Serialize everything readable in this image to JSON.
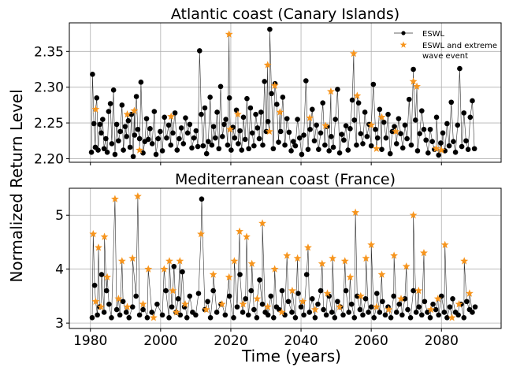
{
  "figure": {
    "xlabel": "Time (years)",
    "ylabel": "Normalized Return Level"
  },
  "colors": {
    "eswl": "#000000",
    "extreme": "#f7951d",
    "grid": "#b0b0b0",
    "line": "#333333"
  },
  "chart_data": [
    {
      "type": "scatter",
      "title": "Atlantic coast (Canary Islands)",
      "xlabel": "",
      "ylabel": "",
      "xlim": [
        1974,
        2097
      ],
      "ylim": [
        2.195,
        2.39
      ],
      "xticks": [
        1980,
        2000,
        2020,
        2040,
        2060,
        2080
      ],
      "yticks": [
        2.2,
        2.25,
        2.3,
        2.35
      ],
      "ytick_labels": [
        "2.20",
        "2.25",
        "2.30",
        "2.35"
      ],
      "grid": true,
      "legend": {
        "placement": "top-right",
        "entries": [
          {
            "label": "ESWL",
            "marker": "circle-line"
          },
          {
            "label_lines": [
              "ESWL and extreme",
              "wave event"
            ],
            "marker": "star"
          }
        ]
      },
      "series": [
        {
          "name": "ESWL",
          "marker": "circle",
          "x": [
            1980.3,
            1980.6,
            1981.0,
            1981.4,
            1981.8,
            1982.2,
            1982.7,
            1983.1,
            1983.5,
            1983.9,
            1984.4,
            1984.8,
            1985.2,
            1985.7,
            1986.1,
            1986.6,
            1987.0,
            1987.5,
            1988.0,
            1988.5,
            1989.0,
            1989.4,
            1989.9,
            1990.3,
            1990.8,
            1991.3,
            1991.7,
            1992.2,
            1992.6,
            1993.1,
            1993.5,
            1994.0,
            1994.4,
            1995.0,
            1995.5,
            1996.0,
            1996.5,
            1997.0,
            1997.6,
            1998.2,
            1998.7,
            1999.3,
            1999.9,
            2000.5,
            2001.1,
            2001.7,
            2002.3,
            2002.9,
            2003.5,
            2004.1,
            2004.7,
            2005.3,
            2005.9,
            2006.5,
            2007.1,
            2007.7,
            2008.3,
            2008.9,
            2009.5,
            2010.1,
            2010.6,
            2011.1,
            2011.6,
            2012.1,
            2012.6,
            2013.1,
            2013.6,
            2014.1,
            2014.6,
            2015.1,
            2015.6,
            2016.1,
            2016.6,
            2017.1,
            2017.6,
            2018.1,
            2018.6,
            2019.1,
            2019.6,
            2020.1,
            2020.6,
            2021.1,
            2021.6,
            2022.1,
            2022.6,
            2023.1,
            2023.6,
            2024.1,
            2024.6,
            2025.1,
            2025.6,
            2026.1,
            2026.6,
            2027.1,
            2027.6,
            2028.1,
            2028.6,
            2029.1,
            2029.6,
            2030.1,
            2030.6,
            2031.1,
            2031.6,
            2032.1,
            2032.6,
            2033.1,
            2033.6,
            2034.2,
            2034.8,
            2035.4,
            2036.0,
            2036.6,
            2037.2,
            2037.8,
            2038.4,
            2039.0,
            2039.6,
            2040.2,
            2040.8,
            2041.4,
            2042.0,
            2042.6,
            2043.2,
            2043.8,
            2044.4,
            2045.0,
            2045.6,
            2046.2,
            2046.8,
            2047.4,
            2048.0,
            2048.6,
            2049.2,
            2049.8,
            2050.4,
            2051.0,
            2051.6,
            2052.2,
            2052.8,
            2053.4,
            2054.0,
            2054.6,
            2055.2,
            2055.8,
            2056.4,
            2057.0,
            2057.6,
            2058.2,
            2058.8,
            2059.4,
            2060.0,
            2060.6,
            2061.2,
            2061.8,
            2062.4,
            2063.0,
            2063.6,
            2064.2,
            2064.8,
            2065.4,
            2066.0,
            2066.6,
            2067.2,
            2067.8,
            2068.4,
            2069.0,
            2069.6,
            2070.2,
            2070.8,
            2071.4,
            2072.0,
            2072.6,
            2073.2,
            2073.8,
            2074.4,
            2075.0,
            2075.6,
            2076.2,
            2076.8,
            2077.4,
            2078.0,
            2078.6,
            2079.2,
            2079.8,
            2080.4,
            2081.0,
            2081.6,
            2082.2,
            2082.8,
            2083.4,
            2084.0,
            2084.6,
            2085.2,
            2085.8,
            2086.4,
            2087.0,
            2087.6,
            2088.2,
            2088.8,
            2089.4
          ],
          "y": [
            2.209,
            2.318,
            2.249,
            2.216,
            2.285,
            2.212,
            2.248,
            2.236,
            2.255,
            2.214,
            2.228,
            2.209,
            2.266,
            2.277,
            2.221,
            2.296,
            2.206,
            2.248,
            2.225,
            2.238,
            2.275,
            2.212,
            2.245,
            2.231,
            2.253,
            2.216,
            2.262,
            2.203,
            2.233,
            2.287,
            2.241,
            2.228,
            2.307,
            2.208,
            2.224,
            2.256,
            2.227,
            2.242,
            2.221,
            2.266,
            2.206,
            2.228,
            2.238,
            2.211,
            2.258,
            2.229,
            2.247,
            2.219,
            2.236,
            2.264,
            2.212,
            2.228,
            2.243,
            2.221,
            2.257,
            2.236,
            2.248,
            2.215,
            2.229,
            2.239,
            2.217,
            2.351,
            2.262,
            2.218,
            2.271,
            2.207,
            2.224,
            2.286,
            2.219,
            2.245,
            2.229,
            2.265,
            2.214,
            2.301,
            2.231,
            2.248,
            2.255,
            2.219,
            2.285,
            2.212,
            2.244,
            2.229,
            2.268,
            2.221,
            2.239,
            2.212,
            2.258,
            2.227,
            2.284,
            2.214,
            2.271,
            2.236,
            2.218,
            2.262,
            2.243,
            2.228,
            2.265,
            2.219,
            2.308,
            2.238,
            2.252,
            2.381,
            2.291,
            2.214,
            2.305,
            2.276,
            2.223,
            2.238,
            2.286,
            2.219,
            2.256,
            2.237,
            2.211,
            2.224,
            2.218,
            2.255,
            2.229,
            2.206,
            2.233,
            2.309,
            2.213,
            2.241,
            2.269,
            2.225,
            2.247,
            2.213,
            2.236,
            2.278,
            2.219,
            2.245,
            2.211,
            2.231,
            2.216,
            2.255,
            2.297,
            2.208,
            2.234,
            2.226,
            2.246,
            2.212,
            2.242,
            2.282,
            2.254,
            2.219,
            2.278,
            2.235,
            2.221,
            2.265,
            2.231,
            2.248,
            2.218,
            2.304,
            2.241,
            2.229,
            2.269,
            2.213,
            2.251,
            2.229,
            2.262,
            2.207,
            2.238,
            2.245,
            2.221,
            2.256,
            2.235,
            2.215,
            2.247,
            2.228,
            2.283,
            2.219,
            2.325,
            2.254,
            2.211,
            2.235,
            2.267,
            2.241,
            2.226,
            2.208,
            2.241,
            2.224,
            2.213,
            2.258,
            2.205,
            2.222,
            2.236,
            2.211,
            2.249,
            2.218,
            2.279,
            2.224,
            2.209,
            2.247,
            2.326,
            2.217,
            2.264,
            2.225,
            2.213,
            2.258,
            2.281,
            2.214
          ]
        },
        {
          "name": "ESWL and extreme wave event",
          "marker": "star",
          "x": [
            1981.5,
            1990.5,
            1992.5,
            1994.0,
            2003.0,
            2019.5,
            2019.8,
            2022.0,
            2030.5,
            2031.0,
            2032.5,
            2034.0,
            2042.5,
            2047.0,
            2048.5,
            2055.0,
            2056.0,
            2060.0,
            2061.5,
            2063.0,
            2067.0,
            2072.0,
            2073.0,
            2078.5,
            2080.0
          ],
          "y": [
            2.269,
            2.262,
            2.267,
            2.212,
            2.259,
            2.374,
            2.241,
            2.262,
            2.331,
            2.238,
            2.302,
            2.265,
            2.257,
            2.246,
            2.294,
            2.347,
            2.288,
            2.247,
            2.214,
            2.258,
            2.238,
            2.308,
            2.301,
            2.214,
            2.212
          ]
        }
      ]
    },
    {
      "type": "scatter",
      "title": "Mediterranean coast (France)",
      "xlabel": "Time (years)",
      "ylabel": "",
      "xlim": [
        1974,
        2097
      ],
      "ylim": [
        2.9,
        5.5
      ],
      "xticks": [
        1980,
        2000,
        2020,
        2040,
        2060,
        2080
      ],
      "xtick_labels": [
        "1980",
        "2000",
        "2020",
        "2040",
        "2060",
        "2080"
      ],
      "yticks": [
        3,
        4,
        5
      ],
      "ytick_labels": [
        "3",
        "4",
        "5"
      ],
      "grid": true,
      "series": [
        {
          "name": "ESWL",
          "marker": "circle",
          "x": [
            1980.5,
            1981.2,
            1982.0,
            1982.6,
            1983.2,
            1983.9,
            1984.6,
            1985.3,
            1986.0,
            1987.5,
            1988.4,
            1989.3,
            1990.2,
            1991.0,
            1992.0,
            1993.0,
            1994.0,
            1995.0,
            1996.2,
            1997.5,
            1999.0,
            2000.5,
            2001.5,
            2002.4,
            2003.2,
            2003.8,
            2004.4,
            2005.0,
            2005.6,
            2006.2,
            2006.8,
            2007.5,
            2008.3,
            2009.1,
            2010.0,
            2010.8,
            2011.7,
            2012.6,
            2013.4,
            2014.2,
            2015.0,
            2016.0,
            2017.2,
            2018.4,
            2019.6,
            2020.8,
            2021.8,
            2022.6,
            2023.4,
            2024.2,
            2025.0,
            2025.8,
            2026.6,
            2027.4,
            2028.2,
            2029.0,
            2029.8,
            2030.6,
            2031.4,
            2032.2,
            2033.0,
            2033.8,
            2034.6,
            2035.4,
            2036.4,
            2037.4,
            2038.4,
            2039.2,
            2040.0,
            2040.8,
            2041.6,
            2042.4,
            2043.2,
            2044.0,
            2044.8,
            2045.6,
            2046.4,
            2047.2,
            2048.0,
            2048.8,
            2049.6,
            2050.4,
            2051.2,
            2052.0,
            2052.8,
            2053.6,
            2054.4,
            2055.2,
            2056.0,
            2056.8,
            2057.6,
            2058.4,
            2059.2,
            2060.0,
            2060.8,
            2061.6,
            2062.4,
            2063.2,
            2064.0,
            2064.8,
            2065.6,
            2066.4,
            2067.2,
            2068.0,
            2068.8,
            2069.6,
            2070.4,
            2071.2,
            2072.0,
            2072.8,
            2073.6,
            2074.4,
            2075.2,
            2076.0,
            2076.8,
            2077.6,
            2078.4,
            2079.2,
            2080.0,
            2080.8,
            2081.6,
            2082.4,
            2083.2,
            2084.0,
            2084.8,
            2085.6,
            2086.4,
            2087.2,
            2088.0,
            2088.8,
            2089.6
          ],
          "y": [
            3.1,
            3.7,
            3.15,
            3.3,
            3.9,
            3.2,
            3.6,
            3.35,
            3.1,
            3.25,
            3.15,
            3.4,
            3.2,
            3.1,
            3.3,
            3.5,
            3.15,
            3.25,
            3.1,
            3.2,
            3.35,
            3.15,
            3.6,
            3.1,
            3.3,
            4.05,
            3.2,
            3.45,
            3.15,
            3.95,
            3.3,
            3.1,
            3.5,
            3.2,
            3.15,
            3.55,
            5.3,
            3.25,
            3.4,
            3.1,
            3.6,
            3.2,
            3.35,
            3.15,
            3.5,
            3.1,
            3.3,
            3.9,
            3.2,
            3.45,
            3.15,
            3.6,
            3.25,
            3.1,
            3.8,
            3.35,
            3.2,
            3.15,
            3.5,
            3.1,
            3.3,
            3.25,
            3.6,
            3.15,
            3.4,
            3.2,
            3.1,
            3.55,
            3.3,
            3.15,
            3.9,
            3.2,
            3.45,
            3.1,
            3.35,
            3.6,
            3.25,
            3.15,
            3.5,
            3.2,
            3.1,
            3.4,
            3.3,
            3.15,
            3.6,
            3.2,
            3.35,
            3.1,
            3.5,
            3.25,
            3.15,
            3.45,
            3.2,
            3.3,
            3.1,
            3.55,
            3.2,
            3.4,
            3.15,
            3.3,
            3.1,
            3.5,
            3.2,
            3.35,
            3.15,
            3.45,
            3.25,
            3.1,
            3.6,
            3.2,
            3.3,
            3.15,
            3.4,
            3.2,
            3.1,
            3.35,
            3.25,
            3.15,
            3.5,
            3.2,
            3.1,
            3.3,
            3.45,
            3.2,
            3.15,
            3.35,
            3.1,
            3.4,
            3.25,
            3.2,
            3.3
          ]
        },
        {
          "name": "ESWL and extreme wave event",
          "marker": "star",
          "x": [
            1980.8,
            1981.5,
            1982.3,
            1983.0,
            1984.0,
            1984.8,
            1987.0,
            1988.0,
            1989.0,
            1990.5,
            1992.0,
            1993.5,
            1995.0,
            1996.5,
            1998.0,
            2001.0,
            2002.5,
            2003.5,
            2004.5,
            2005.5,
            2007.0,
            2011.5,
            2013.0,
            2015.0,
            2017.5,
            2019.5,
            2021.0,
            2022.5,
            2023.5,
            2024.5,
            2026.0,
            2027.5,
            2029.0,
            2030.5,
            2032.5,
            2034.5,
            2036.0,
            2037.5,
            2039.0,
            2040.5,
            2042.0,
            2044.0,
            2046.0,
            2047.5,
            2049.0,
            2051.0,
            2052.5,
            2054.0,
            2055.5,
            2057.0,
            2058.5,
            2060.0,
            2061.5,
            2063.0,
            2065.0,
            2066.5,
            2068.5,
            2070.0,
            2072.0,
            2073.5,
            2075.0,
            2077.0,
            2079.0,
            2081.0,
            2083.0,
            2085.0,
            2086.5,
            2088.0
          ],
          "y": [
            4.65,
            3.4,
            4.4,
            3.3,
            4.6,
            3.85,
            5.3,
            3.45,
            4.15,
            3.3,
            4.2,
            5.35,
            3.35,
            4.0,
            3.1,
            4.0,
            4.15,
            3.6,
            3.2,
            4.15,
            3.35,
            4.65,
            3.25,
            3.9,
            3.35,
            3.85,
            4.15,
            4.7,
            3.35,
            4.6,
            4.1,
            3.45,
            4.85,
            3.3,
            4.0,
            3.2,
            4.25,
            3.6,
            4.2,
            3.4,
            4.4,
            3.25,
            4.1,
            3.55,
            4.2,
            3.3,
            4.15,
            3.85,
            5.05,
            3.5,
            4.2,
            4.45,
            3.3,
            3.9,
            3.25,
            4.25,
            3.45,
            4.05,
            5.0,
            3.6,
            4.3,
            3.25,
            3.45,
            4.45,
            3.1,
            3.35,
            4.15,
            3.55
          ]
        }
      ]
    }
  ]
}
